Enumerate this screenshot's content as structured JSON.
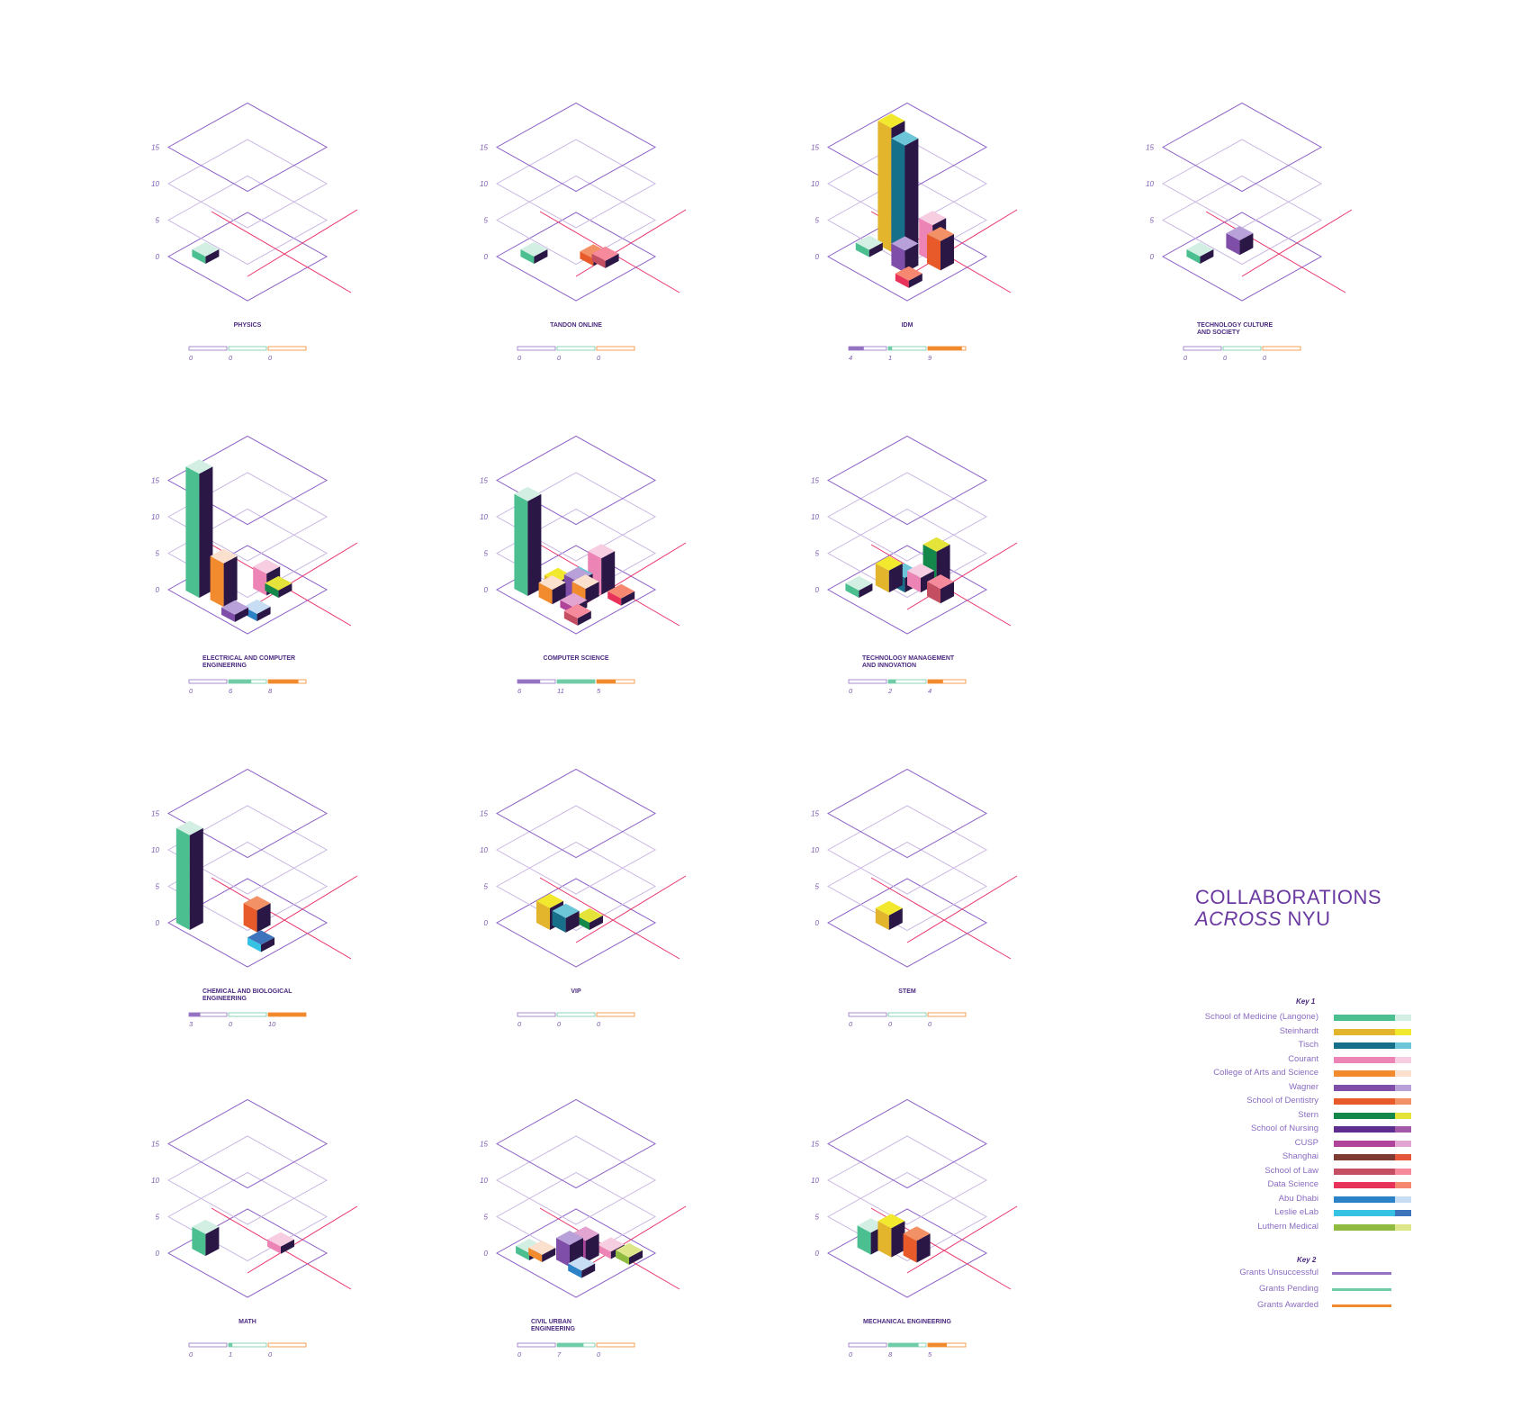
{
  "header": {
    "line1": "COLLABORATIONS",
    "line2_italic": "ACROSS",
    "line2_rest": "NYU"
  },
  "key1": {
    "title": "Key 1",
    "items": [
      {
        "name": "School of Medicine (Langone)",
        "color": "#4cbf91",
        "light": "#d3efe4"
      },
      {
        "name": "Steinhardt",
        "color": "#e3b52c",
        "light": "#f2e92e"
      },
      {
        "name": "Tisch",
        "color": "#17708a",
        "light": "#6cc6d8"
      },
      {
        "name": "Courant",
        "color": "#ec84b5",
        "light": "#f7cde2"
      },
      {
        "name": "College of Arts and Science",
        "color": "#f28a2e",
        "light": "#fbe0cd"
      },
      {
        "name": "Wagner",
        "color": "#7e4ea8",
        "light": "#b8a0d8"
      },
      {
        "name": "School of Dentistry",
        "color": "#e85a2a",
        "light": "#f29066"
      },
      {
        "name": "Stern",
        "color": "#14884a",
        "light": "#e3e33a"
      },
      {
        "name": "School of Nursing",
        "color": "#5d2e8e",
        "light": "#a25aa8"
      },
      {
        "name": "CUSP",
        "color": "#b0449a",
        "light": "#e2a4d0"
      },
      {
        "name": "Shanghai",
        "color": "#7c3a33",
        "light": "#e5553a"
      },
      {
        "name": "School of Law",
        "color": "#c44e62",
        "light": "#f48a9c"
      },
      {
        "name": "Data Science",
        "color": "#e8325a",
        "light": "#f68872"
      },
      {
        "name": "Abu Dhabi",
        "color": "#2c82c6",
        "light": "#c6ddf3"
      },
      {
        "name": "Leslie eLab",
        "color": "#36c2e3",
        "light": "#3e74bc"
      },
      {
        "name": "Luthern Medical",
        "color": "#8fbb40",
        "light": "#dde78a"
      }
    ]
  },
  "key2": {
    "title": "Key 2",
    "items": [
      {
        "name": "Grants Unsuccessful",
        "color": "#9573c2"
      },
      {
        "name": "Grants Pending",
        "color": "#6fcca6"
      },
      {
        "name": "Grants Awarded",
        "color": "#f08a2c"
      }
    ]
  },
  "colors": {
    "face_dark": "#2a1745",
    "plane": "#8a5cc4",
    "plane_light": "#c8b6e2",
    "red_line": "#e8336a",
    "axis_label": "#7a5ab0"
  },
  "chart_data": [
    {
      "type": "bar",
      "title": "PHYSICS",
      "ticks": [
        "0",
        "5",
        "10",
        "15"
      ],
      "grants": [
        0,
        0,
        0
      ],
      "bars": [
        {
          "school": "School of Medicine (Langone)",
          "value": 1
        }
      ]
    },
    {
      "type": "bar",
      "title": "TANDON ONLINE",
      "ticks": [
        "0",
        "5",
        "10",
        "15"
      ],
      "grants": [
        0,
        0,
        0
      ],
      "bars": [
        {
          "school": "School of Medicine (Langone)",
          "value": 1
        },
        {
          "school": "School of Dentistry",
          "value": 1
        },
        {
          "school": "School of Law",
          "value": 1
        }
      ]
    },
    {
      "type": "bar",
      "title": "IDM",
      "ticks": [
        "0",
        "5",
        "10",
        "15"
      ],
      "grants": [
        4,
        1,
        9
      ],
      "bars": [
        {
          "school": "School of Medicine (Langone)",
          "value": 1
        },
        {
          "school": "Steinhardt",
          "value": 17
        },
        {
          "school": "Tisch",
          "value": 15
        },
        {
          "school": "Wagner",
          "value": 3
        },
        {
          "school": "Courant",
          "value": 5
        },
        {
          "school": "School of Dentistry",
          "value": 4
        },
        {
          "school": "Data Science",
          "value": 1
        }
      ]
    },
    {
      "type": "bar",
      "title": "TECHNOLOGY CULTURE AND SOCIETY",
      "ticks": [
        "0",
        "5",
        "10",
        "15"
      ],
      "grants": [
        0,
        0,
        0
      ],
      "bars": [
        {
          "school": "School of Medicine (Langone)",
          "value": 1
        },
        {
          "school": "Wagner",
          "value": 2
        }
      ]
    },
    {
      "type": "bar",
      "title": "ELECTRICAL AND COMPUTER ENGINEERING",
      "ticks": [
        "0",
        "5",
        "10",
        "15"
      ],
      "grants": [
        0,
        6,
        8
      ],
      "bars": [
        {
          "school": "School of Medicine (Langone)",
          "value": 17
        },
        {
          "school": "College of Arts and Science",
          "value": 6
        },
        {
          "school": "Wagner",
          "value": 1
        },
        {
          "school": "Courant",
          "value": 3
        },
        {
          "school": "Stern",
          "value": 1
        },
        {
          "school": "Abu Dhabi",
          "value": 1
        }
      ]
    },
    {
      "type": "bar",
      "title": "COMPUTER SCIENCE",
      "ticks": [
        "0",
        "5",
        "10",
        "15"
      ],
      "grants": [
        6,
        11,
        5
      ],
      "bars": [
        {
          "school": "School of Medicine (Langone)",
          "value": 13
        },
        {
          "school": "Steinhardt",
          "value": 2
        },
        {
          "school": "College of Arts and Science",
          "value": 2
        },
        {
          "school": "Tisch",
          "value": 2
        },
        {
          "school": "Wagner",
          "value": 3
        },
        {
          "school": "Courant",
          "value": 5
        },
        {
          "school": "College of Arts and Science",
          "value": 2
        },
        {
          "school": "CUSP",
          "value": 1
        },
        {
          "school": "School of Law",
          "value": 1
        },
        {
          "school": "Data Science",
          "value": 1
        }
      ]
    },
    {
      "type": "bar",
      "title": "TECHNOLOGY MANAGEMENT AND INNOVATION",
      "ticks": [
        "0",
        "5",
        "10",
        "15"
      ],
      "grants": [
        0,
        2,
        4
      ],
      "bars": [
        {
          "school": "School of Medicine (Langone)",
          "value": 1
        },
        {
          "school": "Steinhardt",
          "value": 3
        },
        {
          "school": "Tisch",
          "value": 2
        },
        {
          "school": "Courant",
          "value": 2
        },
        {
          "school": "Stern",
          "value": 5
        },
        {
          "school": "School of Law",
          "value": 2
        }
      ]
    },
    {
      "type": "bar",
      "title": "CHEMICAL AND BIOLOGICAL ENGINEERING",
      "ticks": [
        "0",
        "5",
        "10",
        "15"
      ],
      "grants": [
        3,
        0,
        10
      ],
      "bars": [
        {
          "school": "School of Medicine (Langone)",
          "value": 13
        },
        {
          "school": "School of Dentistry",
          "value": 3
        },
        {
          "school": "Leslie eLab",
          "value": 1
        }
      ]
    },
    {
      "type": "bar",
      "title": "VIP",
      "ticks": [
        "0",
        "5",
        "10",
        "15"
      ],
      "grants": [
        0,
        0,
        0
      ],
      "bars": [
        {
          "school": "Steinhardt",
          "value": 3
        },
        {
          "school": "Tisch",
          "value": 2
        },
        {
          "school": "Stern",
          "value": 1
        }
      ]
    },
    {
      "type": "bar",
      "title": "STEM",
      "ticks": [
        "0",
        "5",
        "10",
        "15"
      ],
      "grants": [
        0,
        0,
        0
      ],
      "bars": [
        {
          "school": "Steinhardt",
          "value": 2
        }
      ]
    },
    {
      "type": "bar",
      "title": "MATH",
      "ticks": [
        "0",
        "5",
        "10",
        "15"
      ],
      "grants": [
        0,
        1,
        0
      ],
      "bars": [
        {
          "school": "School of Medicine (Langone)",
          "value": 3
        },
        {
          "school": "Courant",
          "value": 1
        }
      ]
    },
    {
      "type": "bar",
      "title": "CIVIL URBAN ENGINEERING",
      "ticks": [
        "0",
        "5",
        "10",
        "15"
      ],
      "grants": [
        0,
        7,
        0
      ],
      "bars": [
        {
          "school": "School of Medicine (Langone)",
          "value": 1
        },
        {
          "school": "College of Arts and Science",
          "value": 1
        },
        {
          "school": "Wagner",
          "value": 3
        },
        {
          "school": "CUSP",
          "value": 3
        },
        {
          "school": "Courant",
          "value": 1
        },
        {
          "school": "Abu Dhabi",
          "value": 1
        },
        {
          "school": "Luthern Medical",
          "value": 1
        }
      ]
    },
    {
      "type": "bar",
      "title": "MECHANICAL ENGINEERING",
      "ticks": [
        "0",
        "5",
        "10",
        "15"
      ],
      "grants": [
        0,
        8,
        5
      ],
      "bars": [
        {
          "school": "School of Medicine (Langone)",
          "value": 3
        },
        {
          "school": "Steinhardt",
          "value": 4
        },
        {
          "school": "School of Dentistry",
          "value": 3
        }
      ]
    }
  ]
}
